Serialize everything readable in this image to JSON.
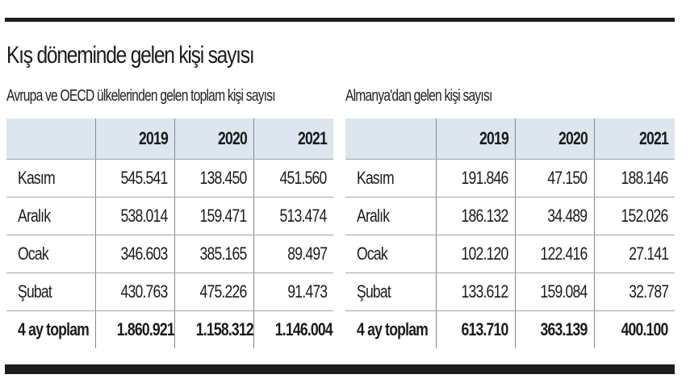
{
  "title": "Kış döneminde gelen kişi sayısı",
  "left_table": {
    "caption": "Avrupa ve OECD ülkelerinden gelen toplam kişi sayısı",
    "columns": [
      "2019",
      "2020",
      "2021"
    ],
    "rows": [
      {
        "label": "Kasım",
        "values": [
          "545.541",
          "138.450",
          "451.560"
        ]
      },
      {
        "label": "Aralık",
        "values": [
          "538.014",
          "159.471",
          "513.474"
        ]
      },
      {
        "label": "Ocak",
        "values": [
          "346.603",
          "385.165",
          "89.497"
        ]
      },
      {
        "label": "Şubat",
        "values": [
          "430.763",
          "475.226",
          "91.473"
        ]
      },
      {
        "label": "4 ay toplam",
        "values": [
          "1.860.921",
          "1.158.312",
          "1.146.004"
        ]
      }
    ]
  },
  "right_table": {
    "caption": "Almanya'dan gelen kişi sayısı",
    "columns": [
      "2019",
      "2020",
      "2021"
    ],
    "rows": [
      {
        "label": "Kasım",
        "values": [
          "191.846",
          "47.150",
          "188.146"
        ]
      },
      {
        "label": "Aralık",
        "values": [
          "186.132",
          "34.489",
          "152.026"
        ]
      },
      {
        "label": "Ocak",
        "values": [
          "102.120",
          "122.416",
          "27.141"
        ]
      },
      {
        "label": "Şubat",
        "values": [
          "133.612",
          "159.084",
          "32.787"
        ]
      },
      {
        "label": "4 ay toplam",
        "values": [
          "613.710",
          "363.139",
          "400.100"
        ]
      }
    ]
  }
}
